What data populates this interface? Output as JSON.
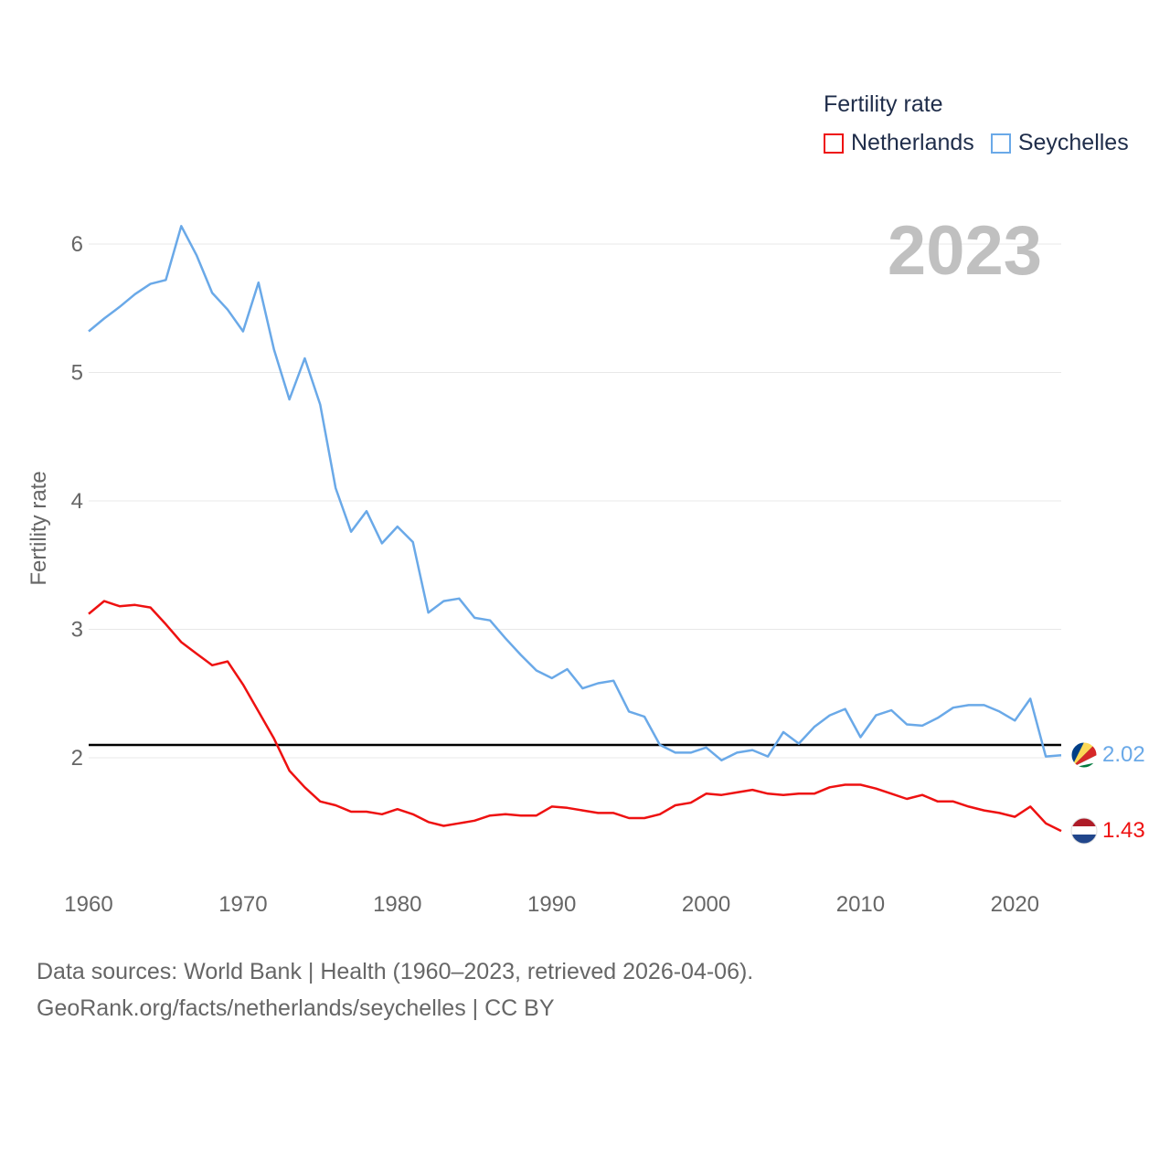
{
  "chart_data": {
    "type": "line",
    "title": "Fertility rate",
    "ylabel": "Fertility rate",
    "xlabel": "",
    "xlim": [
      1960,
      2023
    ],
    "ylim": [
      1.1,
      6.4
    ],
    "yticks": [
      2,
      3,
      4,
      5,
      6
    ],
    "xticks": [
      1960,
      1970,
      1980,
      1990,
      2000,
      2010,
      2020
    ],
    "year_label": "2023",
    "reference_line": 2.1,
    "x": [
      1960,
      1961,
      1962,
      1963,
      1964,
      1965,
      1966,
      1967,
      1968,
      1969,
      1970,
      1971,
      1972,
      1973,
      1974,
      1975,
      1976,
      1977,
      1978,
      1979,
      1980,
      1981,
      1982,
      1983,
      1984,
      1985,
      1986,
      1987,
      1988,
      1989,
      1990,
      1991,
      1992,
      1993,
      1994,
      1995,
      1996,
      1997,
      1998,
      1999,
      2000,
      2001,
      2002,
      2003,
      2004,
      2005,
      2006,
      2007,
      2008,
      2009,
      2010,
      2011,
      2012,
      2013,
      2014,
      2015,
      2016,
      2017,
      2018,
      2019,
      2020,
      2021,
      2022,
      2023
    ],
    "series": [
      {
        "name": "Netherlands",
        "color": "#ee1111",
        "end_label": "1.43",
        "values": [
          3.12,
          3.22,
          3.18,
          3.19,
          3.17,
          3.04,
          2.9,
          2.81,
          2.72,
          2.75,
          2.57,
          2.36,
          2.15,
          1.9,
          1.77,
          1.66,
          1.63,
          1.58,
          1.58,
          1.56,
          1.6,
          1.56,
          1.5,
          1.47,
          1.49,
          1.51,
          1.55,
          1.56,
          1.55,
          1.55,
          1.62,
          1.61,
          1.59,
          1.57,
          1.57,
          1.53,
          1.53,
          1.56,
          1.63,
          1.65,
          1.72,
          1.71,
          1.73,
          1.75,
          1.72,
          1.71,
          1.72,
          1.72,
          1.77,
          1.79,
          1.79,
          1.76,
          1.72,
          1.68,
          1.71,
          1.66,
          1.66,
          1.62,
          1.59,
          1.57,
          1.54,
          1.62,
          1.49,
          1.43
        ]
      },
      {
        "name": "Seychelles",
        "color": "#6aa9e8",
        "end_label": "2.02",
        "values": [
          5.32,
          5.42,
          5.51,
          5.61,
          5.69,
          5.72,
          6.14,
          5.91,
          5.62,
          5.49,
          5.32,
          5.7,
          5.18,
          4.79,
          5.11,
          4.75,
          4.1,
          3.76,
          3.92,
          3.67,
          3.8,
          3.68,
          3.13,
          3.22,
          3.24,
          3.09,
          3.07,
          2.93,
          2.8,
          2.68,
          2.62,
          2.69,
          2.54,
          2.58,
          2.6,
          2.36,
          2.32,
          2.1,
          2.04,
          2.04,
          2.08,
          1.98,
          2.04,
          2.06,
          2.01,
          2.2,
          2.11,
          2.24,
          2.33,
          2.38,
          2.16,
          2.33,
          2.37,
          2.26,
          2.25,
          2.31,
          2.39,
          2.41,
          2.41,
          2.36,
          2.29,
          2.46,
          2.01,
          2.02
        ]
      }
    ]
  },
  "legend": {
    "title": "Fertility rate",
    "items": [
      "Netherlands",
      "Seychelles"
    ]
  },
  "footer": {
    "line1": "Data sources: World Bank | Health (1960–2023, retrieved 2026-04-06).",
    "line2": "GeoRank.org/facts/netherlands/seychelles | CC BY"
  },
  "flags": [
    "seychelles-flag-icon",
    "netherlands-flag-icon"
  ]
}
